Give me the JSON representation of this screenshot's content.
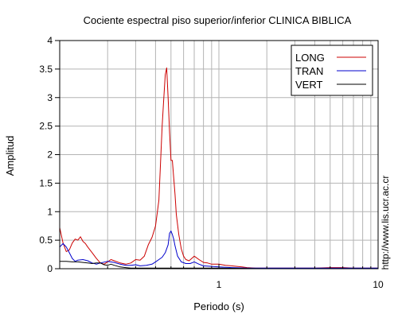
{
  "chart_data": {
    "type": "line",
    "title": "Cociente espectral piso superior/inferior  CLINICA BIBLICA",
    "xlabel": "Periodo (s)",
    "ylabel": "Amplitud",
    "x_scale": "log",
    "xlim": [
      0.1,
      10
    ],
    "ylim": [
      0,
      4
    ],
    "x_ticks": [
      {
        "value": 1,
        "label": "1"
      },
      {
        "value": 10,
        "label": "10"
      }
    ],
    "y_ticks": [
      {
        "value": 0,
        "label": "0"
      },
      {
        "value": 0.5,
        "label": "0.5"
      },
      {
        "value": 1,
        "label": "1"
      },
      {
        "value": 1.5,
        "label": "1.5"
      },
      {
        "value": 2,
        "label": "2"
      },
      {
        "value": 2.5,
        "label": "2.5"
      },
      {
        "value": 3,
        "label": "3"
      },
      {
        "value": 3.5,
        "label": "3.5"
      },
      {
        "value": 4,
        "label": "4"
      }
    ],
    "grid": true,
    "legend_position": "top-right",
    "watermark": "http://www.lis.ucr.ac.cr",
    "series": [
      {
        "name": "LONG",
        "color": "#cc0000",
        "x": [
          0.1,
          0.105,
          0.11,
          0.115,
          0.12,
          0.125,
          0.13,
          0.135,
          0.14,
          0.145,
          0.15,
          0.16,
          0.17,
          0.18,
          0.19,
          0.2,
          0.21,
          0.22,
          0.24,
          0.26,
          0.28,
          0.3,
          0.32,
          0.34,
          0.36,
          0.38,
          0.4,
          0.42,
          0.44,
          0.45,
          0.46,
          0.47,
          0.48,
          0.49,
          0.5,
          0.51,
          0.52,
          0.53,
          0.54,
          0.56,
          0.58,
          0.6,
          0.62,
          0.65,
          0.7,
          0.75,
          0.8,
          0.85,
          0.9,
          1.0,
          1.1,
          1.2,
          1.3,
          1.4,
          1.5,
          1.7,
          2.0,
          2.5,
          3.0,
          4.0,
          5.0,
          6.0,
          7.0,
          8.0,
          10.0
        ],
        "y": [
          0.72,
          0.45,
          0.3,
          0.33,
          0.45,
          0.52,
          0.5,
          0.56,
          0.48,
          0.44,
          0.38,
          0.28,
          0.18,
          0.1,
          0.08,
          0.12,
          0.16,
          0.14,
          0.1,
          0.08,
          0.1,
          0.16,
          0.15,
          0.22,
          0.42,
          0.55,
          0.75,
          1.2,
          2.5,
          2.95,
          3.4,
          3.52,
          3.0,
          2.4,
          1.9,
          1.9,
          1.6,
          1.3,
          0.95,
          0.6,
          0.35,
          0.22,
          0.16,
          0.14,
          0.22,
          0.16,
          0.11,
          0.1,
          0.08,
          0.08,
          0.06,
          0.05,
          0.04,
          0.03,
          0.02,
          0.01,
          0.01,
          0.01,
          0.01,
          0.01,
          0.02,
          0.02,
          0.01,
          0.01,
          0.01
        ]
      },
      {
        "name": "TRAN",
        "color": "#0000cc",
        "x": [
          0.1,
          0.105,
          0.11,
          0.115,
          0.12,
          0.125,
          0.13,
          0.14,
          0.15,
          0.16,
          0.17,
          0.18,
          0.2,
          0.22,
          0.24,
          0.26,
          0.28,
          0.3,
          0.32,
          0.35,
          0.38,
          0.4,
          0.42,
          0.44,
          0.46,
          0.48,
          0.49,
          0.5,
          0.51,
          0.52,
          0.53,
          0.55,
          0.58,
          0.62,
          0.66,
          0.7,
          0.75,
          0.8,
          0.9,
          1.0,
          1.2,
          1.5,
          2.0,
          3.0,
          5.0,
          7.0,
          10.0
        ],
        "y": [
          0.38,
          0.44,
          0.38,
          0.28,
          0.18,
          0.13,
          0.15,
          0.16,
          0.14,
          0.1,
          0.08,
          0.1,
          0.13,
          0.11,
          0.08,
          0.06,
          0.06,
          0.07,
          0.05,
          0.06,
          0.08,
          0.12,
          0.16,
          0.2,
          0.28,
          0.42,
          0.62,
          0.66,
          0.6,
          0.52,
          0.4,
          0.22,
          0.12,
          0.09,
          0.09,
          0.12,
          0.08,
          0.05,
          0.04,
          0.03,
          0.02,
          0.01,
          0.01,
          0.01,
          0.01,
          0.01,
          0.01
        ]
      },
      {
        "name": "VERT",
        "color": "#000000",
        "x": [
          0.1,
          0.11,
          0.12,
          0.13,
          0.14,
          0.15,
          0.16,
          0.17,
          0.18,
          0.19,
          0.2,
          0.21,
          0.22,
          0.24,
          0.26,
          0.28,
          0.3,
          0.35,
          0.4,
          0.5,
          0.7,
          1.0,
          2.0,
          5.0,
          10.0
        ],
        "y": [
          0.13,
          0.13,
          0.12,
          0.12,
          0.11,
          0.1,
          0.09,
          0.1,
          0.1,
          0.07,
          0.06,
          0.08,
          0.06,
          0.03,
          0.02,
          0.01,
          0.01,
          0.01,
          0.01,
          0.01,
          0.01,
          0.01,
          0.0,
          0.0,
          0.0
        ]
      }
    ]
  }
}
